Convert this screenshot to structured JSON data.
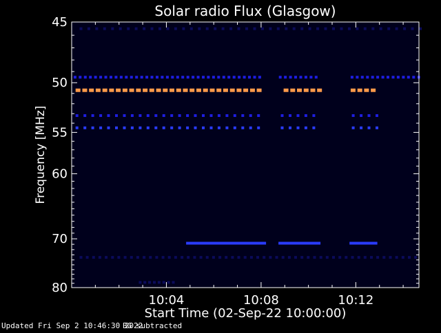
{
  "chart_data": {
    "type": "heatmap",
    "title": "Solar radio Flux (Glasgow)",
    "xlabel": "Start Time (02-Sep-22 10:00:00)",
    "ylabel": "Frequency [MHz]",
    "xlim": [
      "10:00:00",
      "10:14:40"
    ],
    "ylim": [
      45,
      80
    ],
    "y_ticks": [
      45,
      50,
      55,
      60,
      70,
      80
    ],
    "x_ticks": [
      "10:04",
      "10:08",
      "10:12"
    ],
    "grid": false,
    "colors": {
      "background": "#000000",
      "frame": "#ffffff",
      "faint": "#0b0b5a",
      "blue": "#1e1ee0",
      "bright_blue": "#2a3cff",
      "orange": "#ff9a4a"
    },
    "rows": [
      {
        "freq_mhz": 45.5,
        "level": "faint",
        "start": "10:00:20",
        "end": "10:14:40",
        "step_s": 20
      },
      {
        "freq_mhz": 49.5,
        "level": "blue",
        "start": "10:00:05",
        "end": "10:14:40",
        "step_s": 13
      },
      {
        "freq_mhz": 50.7,
        "level": "orange",
        "start": "10:00:10",
        "end": "10:12:50",
        "step_s": 17
      },
      {
        "freq_mhz": 53.2,
        "level": "blue",
        "start": "10:00:10",
        "end": "10:12:50",
        "step_s": 20
      },
      {
        "freq_mhz": 54.5,
        "level": "bright_blue",
        "start": "10:00:10",
        "end": "10:12:50",
        "step_s": 20
      },
      {
        "freq_mhz": 70.8,
        "level": "bright_blue",
        "start": "10:04:50",
        "end": "10:12:45",
        "step_s": 6
      },
      {
        "freq_mhz": 73.5,
        "level": "faint",
        "start": "10:00:20",
        "end": "10:14:40",
        "step_s": 16
      },
      {
        "freq_mhz": 78.8,
        "level": "faint",
        "start": "10:02:50",
        "end": "10:04:20",
        "step_s": 12
      }
    ],
    "gaps": [
      {
        "start": "10:08:05",
        "end": "10:08:40"
      },
      {
        "start": "10:10:25",
        "end": "10:11:40"
      }
    ]
  },
  "footer": {
    "updated": "Updated Fri Sep  2 10:46:30 2022",
    "note": "BG subtracted"
  }
}
